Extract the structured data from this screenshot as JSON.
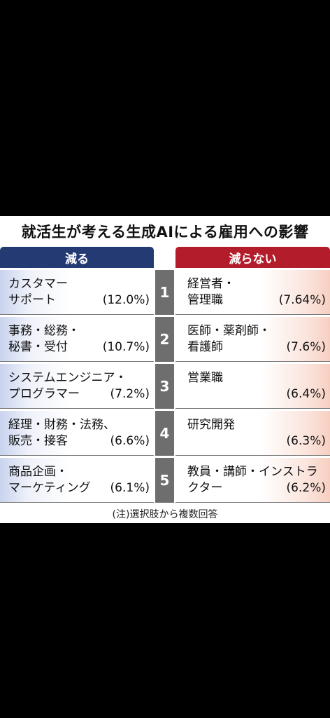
{
  "chart_data": {
    "type": "table",
    "title": "就活生が考える生成AIによる雇用への影響",
    "columns": [
      "減る",
      "減らない"
    ],
    "rows": [
      {
        "rank": "1",
        "decrease": {
          "label": "カスタマー\nサポート",
          "value_text": "(12.0%)",
          "value": 12.0
        },
        "not_decrease": {
          "label": "経営者・\n管理職",
          "value_text": "(7.64%)",
          "value": 7.64
        }
      },
      {
        "rank": "2",
        "decrease": {
          "label": "事務・総務・\n秘書・受付",
          "value_text": "(10.7%)",
          "value": 10.7
        },
        "not_decrease": {
          "label": "医師・薬剤師・\n看護師",
          "value_text": "(7.6%)",
          "value": 7.6
        }
      },
      {
        "rank": "3",
        "decrease": {
          "label": "システムエンジニア・\nプログラマー",
          "value_text": "(7.2%)",
          "value": 7.2
        },
        "not_decrease": {
          "label": "営業職",
          "value_text": "(6.4%)",
          "value": 6.4
        }
      },
      {
        "rank": "4",
        "decrease": {
          "label": "経理・財務・法務、\n販売・接客",
          "value_text": "(6.6%)",
          "value": 6.6
        },
        "not_decrease": {
          "label": "研究開発",
          "value_text": "(6.3%)",
          "value": 6.3
        }
      },
      {
        "rank": "5",
        "decrease": {
          "label": "商品企画・\nマーケティング",
          "value_text": "(6.1%)",
          "value": 6.1
        },
        "not_decrease": {
          "label": "教員・講師・インストラ\nクター",
          "value_text": "(6.2%)",
          "value": 6.2
        }
      }
    ],
    "note": "(注)選択肢から複数回答"
  },
  "colors": {
    "decrease_header": "#233a73",
    "not_decrease_header": "#b31d2b",
    "rank_bg": "#6e6e6e"
  }
}
